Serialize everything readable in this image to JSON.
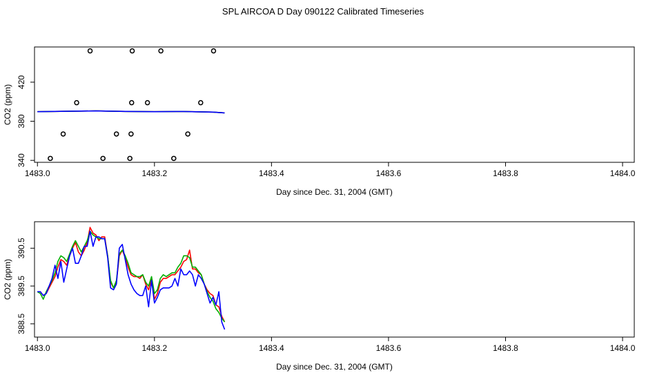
{
  "page": {
    "title": "SPL AIRCOA D  Day 090122  Calibrated Timeseries"
  },
  "colors": {
    "red": "#ff0000",
    "green": "#00b000",
    "blue": "#0000ff",
    "axis": "#000000"
  },
  "chart_data": [
    {
      "type": "scatter",
      "title": "",
      "xlabel": "Day since Dec. 31, 2004 (GMT)",
      "ylabel": "CO2 (ppm)",
      "xlim": [
        1482.995,
        1484.02
      ],
      "ylim": [
        338,
        456
      ],
      "xticks": [
        "1483.0",
        "1483.2",
        "1483.4",
        "1483.6",
        "1483.8",
        "1484.0"
      ],
      "yticks": [
        "340",
        "380",
        "420"
      ],
      "grid": false,
      "markers": {
        "x": [
          1483.022,
          1483.044,
          1483.067,
          1483.09,
          1483.112,
          1483.135,
          1483.158,
          1483.16,
          1483.161,
          1483.162,
          1483.188,
          1483.211,
          1483.233,
          1483.257,
          1483.279,
          1483.301
        ],
        "y": [
          342,
          367,
          399,
          452,
          342,
          367,
          342,
          367,
          399,
          452,
          399,
          452,
          342,
          367,
          399,
          452
        ]
      },
      "series": [
        {
          "color": "red",
          "x": [
            1483.0,
            1483.05,
            1483.1,
            1483.15,
            1483.2,
            1483.25,
            1483.3,
            1483.32
          ],
          "y": [
            389.8,
            390.2,
            390.6,
            390.1,
            389.8,
            390.0,
            389.4,
            388.6
          ]
        },
        {
          "color": "green",
          "x": [
            1483.0,
            1483.05,
            1483.1,
            1483.15,
            1483.2,
            1483.25,
            1483.3,
            1483.32
          ],
          "y": [
            389.8,
            390.2,
            390.6,
            390.1,
            389.8,
            390.0,
            389.4,
            388.6
          ]
        },
        {
          "color": "blue",
          "x": [
            1483.0,
            1483.05,
            1483.1,
            1483.15,
            1483.2,
            1483.25,
            1483.3,
            1483.32
          ],
          "y": [
            389.8,
            390.2,
            390.6,
            390.1,
            389.8,
            390.0,
            389.4,
            388.6
          ]
        }
      ]
    },
    {
      "type": "line",
      "title": "",
      "xlabel": "Day since Dec. 31, 2004 (GMT)",
      "ylabel": "CO2 (ppm)",
      "xlim": [
        1482.995,
        1484.02
      ],
      "ylim": [
        388.15,
        391.2
      ],
      "xticks": [
        "1483.0",
        "1483.2",
        "1483.4",
        "1483.6",
        "1483.8",
        "1484.0"
      ],
      "yticks": [
        "388.5",
        "389.5",
        "390.5"
      ],
      "grid": false,
      "series": [
        {
          "color": "red",
          "x": [
            1483.0,
            1483.005,
            1483.01,
            1483.015,
            1483.02,
            1483.025,
            1483.03,
            1483.035,
            1483.04,
            1483.045,
            1483.05,
            1483.055,
            1483.06,
            1483.065,
            1483.07,
            1483.075,
            1483.08,
            1483.085,
            1483.09,
            1483.095,
            1483.1,
            1483.105,
            1483.11,
            1483.115,
            1483.12,
            1483.125,
            1483.13,
            1483.135,
            1483.14,
            1483.145,
            1483.15,
            1483.155,
            1483.16,
            1483.165,
            1483.17,
            1483.175,
            1483.18,
            1483.185,
            1483.19,
            1483.195,
            1483.2,
            1483.205,
            1483.21,
            1483.215,
            1483.22,
            1483.225,
            1483.23,
            1483.235,
            1483.24,
            1483.245,
            1483.25,
            1483.255,
            1483.26,
            1483.265,
            1483.27,
            1483.275,
            1483.28,
            1483.285,
            1483.29,
            1483.295,
            1483.3,
            1483.305,
            1483.31,
            1483.315,
            1483.32
          ],
          "y": [
            389.35,
            389.35,
            389.25,
            389.3,
            389.45,
            389.6,
            389.75,
            390.0,
            390.2,
            390.15,
            390.05,
            390.3,
            390.5,
            390.65,
            390.4,
            390.3,
            390.45,
            390.65,
            391.05,
            390.9,
            390.85,
            390.7,
            390.8,
            390.8,
            390.3,
            389.6,
            389.45,
            389.6,
            390.3,
            390.45,
            390.25,
            390.0,
            389.8,
            389.75,
            389.75,
            389.7,
            389.8,
            389.55,
            389.4,
            389.7,
            389.15,
            389.3,
            389.6,
            389.7,
            389.7,
            389.75,
            389.8,
            389.8,
            389.9,
            390.0,
            390.15,
            390.2,
            390.45,
            389.95,
            389.95,
            389.85,
            389.8,
            389.55,
            389.4,
            389.3,
            389.25,
            389.0,
            388.95,
            388.7,
            388.55
          ]
        },
        {
          "color": "green",
          "x": [
            1483.0,
            1483.005,
            1483.01,
            1483.015,
            1483.02,
            1483.025,
            1483.03,
            1483.035,
            1483.04,
            1483.045,
            1483.05,
            1483.055,
            1483.06,
            1483.065,
            1483.07,
            1483.075,
            1483.08,
            1483.085,
            1483.09,
            1483.095,
            1483.1,
            1483.105,
            1483.11,
            1483.115,
            1483.12,
            1483.125,
            1483.13,
            1483.135,
            1483.14,
            1483.145,
            1483.15,
            1483.155,
            1483.16,
            1483.165,
            1483.17,
            1483.175,
            1483.18,
            1483.185,
            1483.19,
            1483.195,
            1483.2,
            1483.205,
            1483.21,
            1483.215,
            1483.22,
            1483.225,
            1483.23,
            1483.235,
            1483.24,
            1483.245,
            1483.25,
            1483.255,
            1483.26,
            1483.265,
            1483.27,
            1483.275,
            1483.28,
            1483.285,
            1483.29,
            1483.295,
            1483.3,
            1483.305,
            1483.31,
            1483.315,
            1483.32
          ],
          "y": [
            389.35,
            389.3,
            389.15,
            389.35,
            389.5,
            389.65,
            389.85,
            390.15,
            390.3,
            390.25,
            390.15,
            390.35,
            390.55,
            390.7,
            390.55,
            390.4,
            390.55,
            390.7,
            390.95,
            390.85,
            390.8,
            390.75,
            390.75,
            390.75,
            390.3,
            389.65,
            389.45,
            389.65,
            390.35,
            390.45,
            390.3,
            390.1,
            389.85,
            389.8,
            389.75,
            389.75,
            389.8,
            389.6,
            389.5,
            389.75,
            389.3,
            389.4,
            389.7,
            389.8,
            389.75,
            389.8,
            389.85,
            389.85,
            390.0,
            390.1,
            390.3,
            390.3,
            390.25,
            390.0,
            390.0,
            389.9,
            389.8,
            389.55,
            389.35,
            389.2,
            389.1,
            388.9,
            388.8,
            388.65,
            388.55
          ]
        },
        {
          "color": "blue",
          "x": [
            1483.0,
            1483.005,
            1483.01,
            1483.015,
            1483.02,
            1483.025,
            1483.03,
            1483.035,
            1483.04,
            1483.045,
            1483.05,
            1483.055,
            1483.06,
            1483.065,
            1483.07,
            1483.075,
            1483.08,
            1483.085,
            1483.09,
            1483.095,
            1483.1,
            1483.105,
            1483.11,
            1483.115,
            1483.12,
            1483.125,
            1483.13,
            1483.135,
            1483.14,
            1483.145,
            1483.15,
            1483.155,
            1483.16,
            1483.165,
            1483.17,
            1483.175,
            1483.18,
            1483.185,
            1483.19,
            1483.195,
            1483.2,
            1483.205,
            1483.21,
            1483.215,
            1483.22,
            1483.225,
            1483.23,
            1483.235,
            1483.24,
            1483.245,
            1483.25,
            1483.255,
            1483.26,
            1483.265,
            1483.27,
            1483.275,
            1483.28,
            1483.285,
            1483.29,
            1483.295,
            1483.3,
            1483.305,
            1483.31,
            1483.315,
            1483.32
          ],
          "y": [
            389.35,
            389.35,
            389.25,
            389.3,
            389.5,
            389.7,
            390.05,
            389.7,
            390.15,
            389.6,
            389.95,
            390.3,
            390.5,
            390.1,
            390.1,
            390.3,
            390.55,
            390.55,
            390.95,
            390.55,
            390.8,
            390.8,
            390.75,
            390.75,
            390.25,
            389.45,
            389.4,
            389.55,
            390.5,
            390.6,
            390.2,
            389.8,
            389.55,
            389.4,
            389.3,
            389.25,
            389.25,
            389.5,
            388.95,
            389.65,
            389.05,
            389.2,
            389.4,
            389.45,
            389.45,
            389.45,
            389.5,
            389.7,
            389.5,
            389.95,
            389.8,
            389.8,
            389.9,
            389.8,
            389.5,
            389.8,
            389.7,
            389.55,
            389.3,
            389.05,
            389.2,
            389.0,
            389.35,
            388.55,
            388.35
          ]
        }
      ]
    }
  ]
}
